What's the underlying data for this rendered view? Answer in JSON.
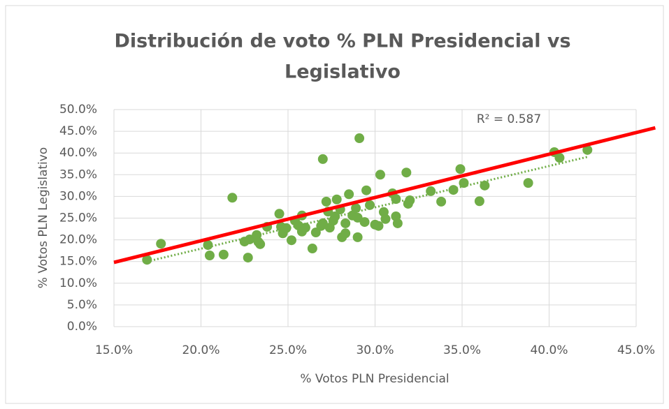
{
  "chart_data": {
    "type": "scatter",
    "title": [
      "Distribución de voto % PLN Presidencial vs",
      "Legislativo"
    ],
    "x_label": "% Votos PLN Presidencial",
    "y_label": "% Votos PLN Legislativo",
    "annotation": "R² = 0.587",
    "color": "#70ad47",
    "grid": true,
    "x": [
      16.9,
      17.7,
      20.4,
      20.5,
      21.3,
      21.8,
      22.5,
      22.7,
      22.8,
      23.2,
      23.3,
      23.4,
      23.8,
      24.5,
      24.6,
      24.7,
      24.9,
      25.2,
      25.4,
      25.6,
      25.8,
      26.0,
      25.8,
      26.4,
      26.6,
      26.9,
      27.0,
      27.0,
      27.2,
      27.3,
      27.4,
      27.6,
      27.7,
      27.8,
      28.0,
      28.1,
      28.3,
      28.3,
      28.5,
      28.7,
      28.9,
      29.0,
      29.0,
      29.1,
      29.4,
      29.5,
      29.7,
      30.0,
      30.2,
      30.3,
      30.5,
      30.6,
      31.0,
      31.2,
      31.2,
      31.3,
      31.8,
      31.9,
      32.0,
      33.2,
      33.8,
      34.5,
      34.9,
      35.1,
      36.0,
      36.3,
      38.8,
      40.3,
      40.6,
      42.2
    ],
    "values": [
      15.4,
      19.1,
      18.8,
      16.4,
      16.6,
      29.7,
      19.6,
      15.9,
      20.1,
      21.1,
      19.5,
      19.0,
      23.0,
      26.0,
      23.0,
      21.5,
      22.7,
      19.9,
      24.4,
      23.3,
      21.9,
      22.8,
      25.6,
      18.0,
      21.7,
      23.2,
      38.6,
      23.8,
      28.8,
      26.5,
      22.8,
      24.4,
      25.4,
      29.3,
      27.0,
      20.6,
      21.5,
      23.8,
      30.5,
      25.6,
      27.3,
      20.6,
      25.1,
      43.4,
      24.1,
      31.4,
      28.0,
      23.5,
      23.2,
      35.0,
      26.4,
      24.8,
      30.7,
      29.4,
      25.4,
      23.8,
      35.5,
      28.3,
      29.1,
      31.2,
      28.8,
      31.5,
      36.3,
      33.1,
      28.9,
      32.5,
      33.1,
      40.2,
      38.9,
      40.7
    ],
    "trendline": {
      "color": "#70ad47",
      "x": [
        16.9,
        42.2
      ],
      "values": [
        15.0,
        39.1
      ]
    },
    "reference_line": {
      "color": "#ff0000",
      "x": [
        15,
        46.1
      ],
      "values": [
        14.8,
        45.8
      ]
    },
    "xlim": [
      15,
      45
    ],
    "ylim": [
      0,
      50
    ],
    "xticks": [
      {
        "value": 15,
        "label": "15.0%"
      },
      {
        "value": 20,
        "label": "20.0%"
      },
      {
        "value": 25,
        "label": "25.0%"
      },
      {
        "value": 30,
        "label": "30.0%"
      },
      {
        "value": 35,
        "label": "35.0%"
      },
      {
        "value": 40,
        "label": "40.0%"
      },
      {
        "value": 45,
        "label": "45.0%"
      }
    ],
    "yticks": [
      {
        "value": 0,
        "label": "0.0%"
      },
      {
        "value": 5,
        "label": "5.0%"
      },
      {
        "value": 10,
        "label": "10.0%"
      },
      {
        "value": 15,
        "label": "15.0%"
      },
      {
        "value": 20,
        "label": "20.0%"
      },
      {
        "value": 25,
        "label": "25.0%"
      },
      {
        "value": 30,
        "label": "30.0%"
      },
      {
        "value": 35,
        "label": "35.0%"
      },
      {
        "value": 40,
        "label": "40.0%"
      },
      {
        "value": 45,
        "label": "45.0%"
      },
      {
        "value": 50,
        "label": "50.0%"
      }
    ]
  }
}
